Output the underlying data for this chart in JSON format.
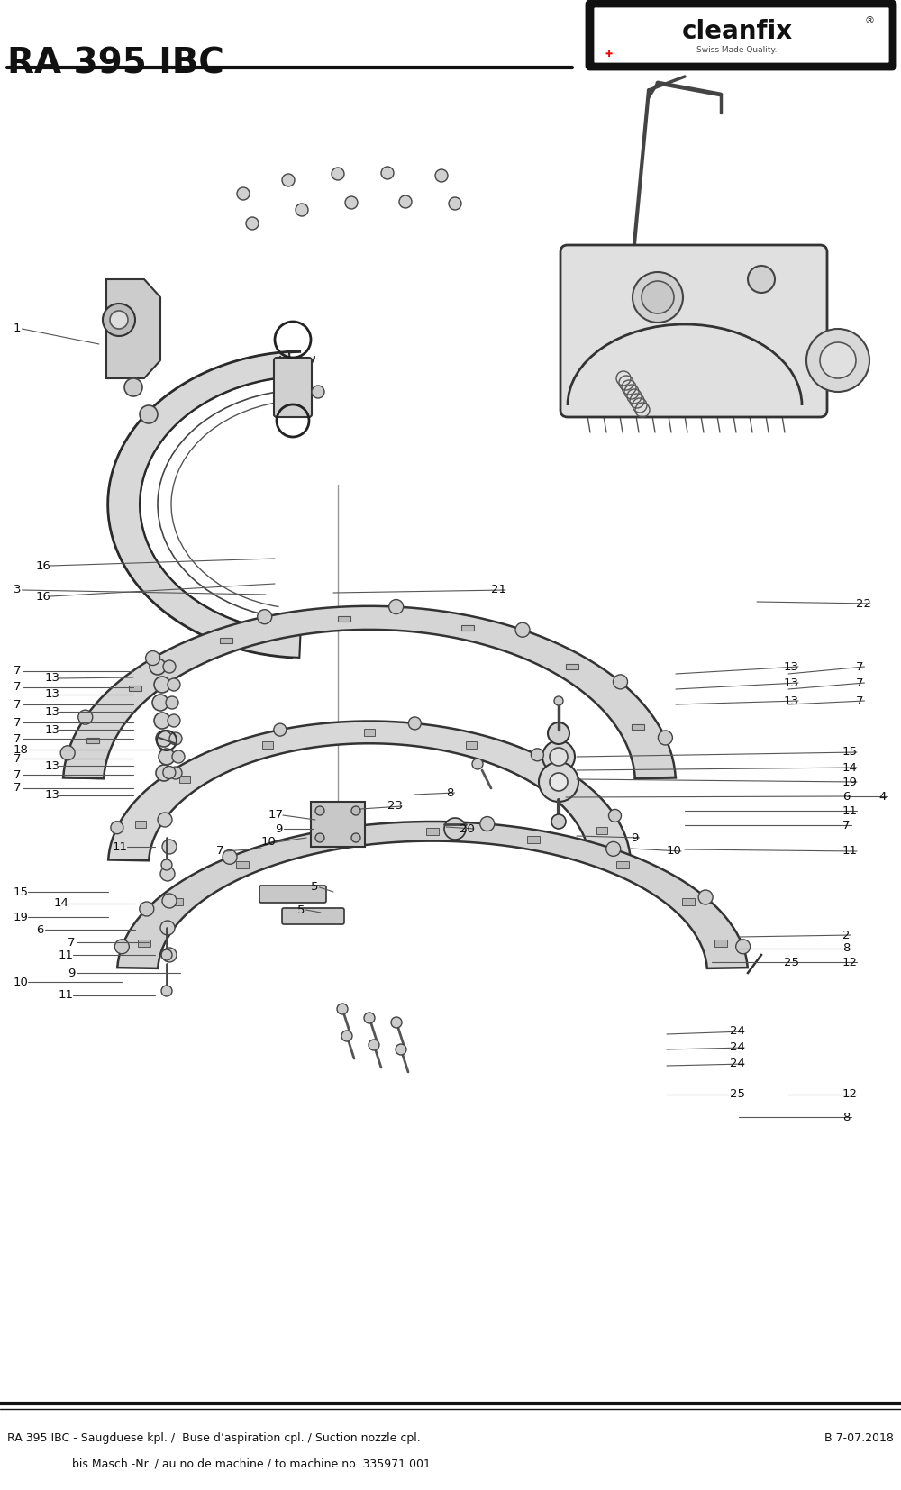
{
  "title": "RA 395 IBC",
  "logo_text": "cleanfix",
  "logo_subtext": "Swiss Made Quality.",
  "footer_left_line1": "RA 395 IBC - Saugduese kpl. /  Buse d’aspiration cpl. / Suction nozzle cpl.",
  "footer_left_line2": "bis Masch.-Nr. / au no de machine / to machine no. 335971.001",
  "footer_right": "B 7-07.2018",
  "bg_color": "#ffffff",
  "line_color": "#222222",
  "text_color": "#111111",
  "fig_width": 10.0,
  "fig_height": 16.54,
  "dpi": 100
}
